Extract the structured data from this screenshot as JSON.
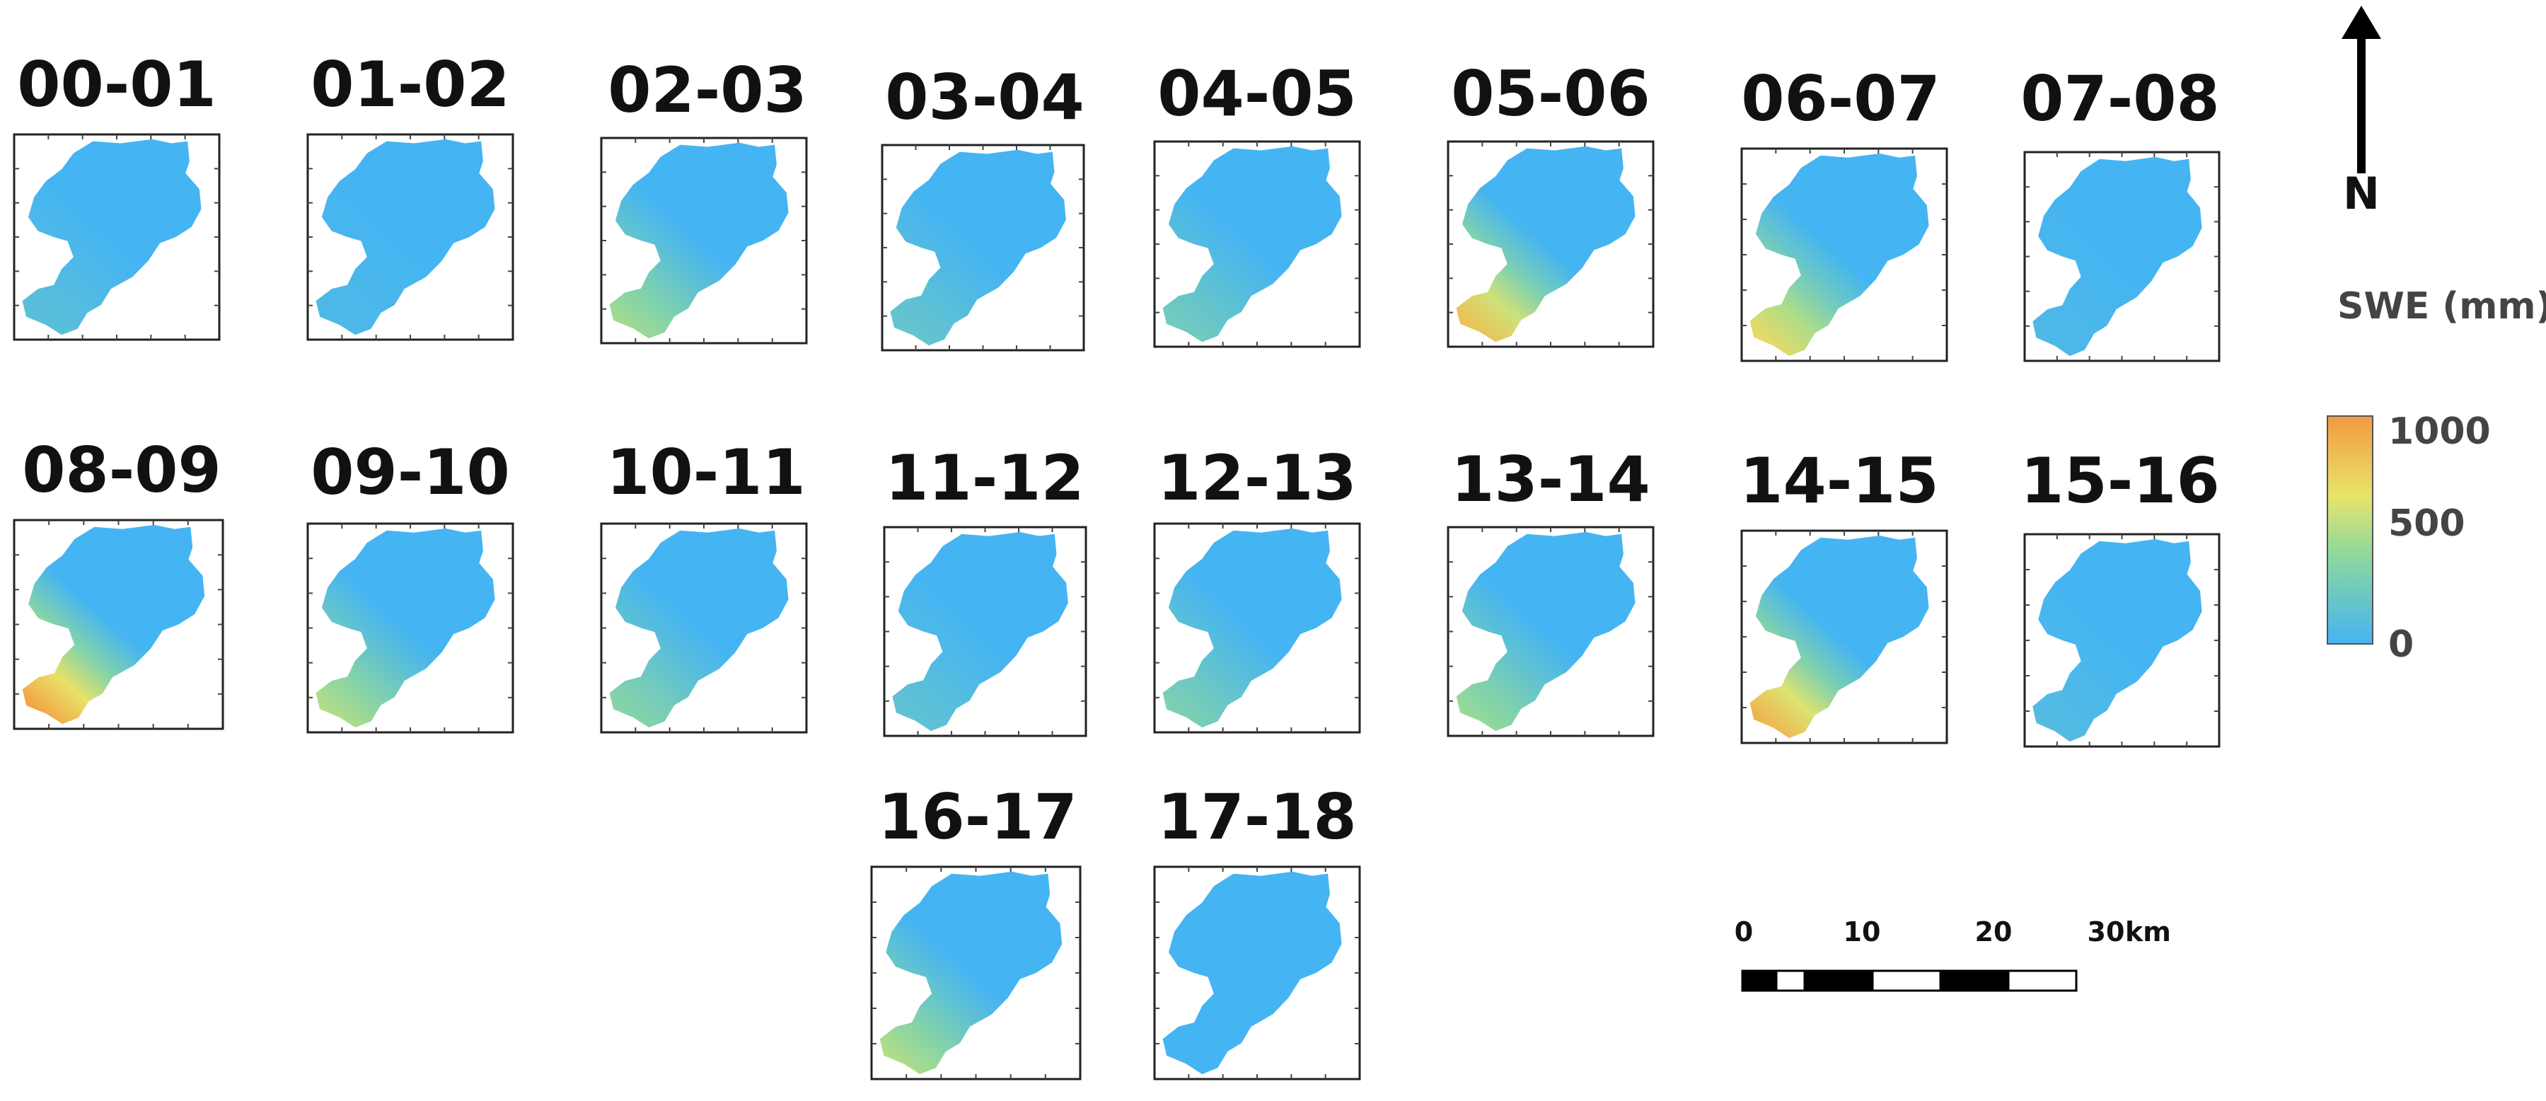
{
  "panels": [
    {
      "label": "00-01",
      "swe_level": 0.12
    },
    {
      "label": "01-02",
      "swe_level": 0.05
    },
    {
      "label": "02-03",
      "swe_level": 0.45
    },
    {
      "label": "03-04",
      "swe_level": 0.18
    },
    {
      "label": "04-05",
      "swe_level": 0.25
    },
    {
      "label": "05-06",
      "swe_level": 0.82
    },
    {
      "label": "06-07",
      "swe_level": 0.7
    },
    {
      "label": "07-08",
      "swe_level": 0.05
    },
    {
      "label": "08-09",
      "swe_level": 0.95
    },
    {
      "label": "09-10",
      "swe_level": 0.5
    },
    {
      "label": "10-11",
      "swe_level": 0.35
    },
    {
      "label": "11-12",
      "swe_level": 0.15
    },
    {
      "label": "12-13",
      "swe_level": 0.3
    },
    {
      "label": "13-14",
      "swe_level": 0.42
    },
    {
      "label": "14-15",
      "swe_level": 0.88
    },
    {
      "label": "15-16",
      "swe_level": 0.08
    },
    {
      "label": "16-17",
      "swe_level": 0.5
    },
    {
      "label": "17-18",
      "swe_level": 0.0
    }
  ],
  "north_arrow": {
    "label": "N"
  },
  "legend": {
    "title": "SWE (mm)",
    "max_label": "1000",
    "mid_label": "500",
    "min_label": "0",
    "colors": [
      "#45b4f2",
      "#8fd99b",
      "#e8e46a",
      "#f39a3f"
    ]
  },
  "scale_bar": {
    "ticks": [
      "0",
      "10",
      "20",
      "30"
    ],
    "unit": "km"
  }
}
